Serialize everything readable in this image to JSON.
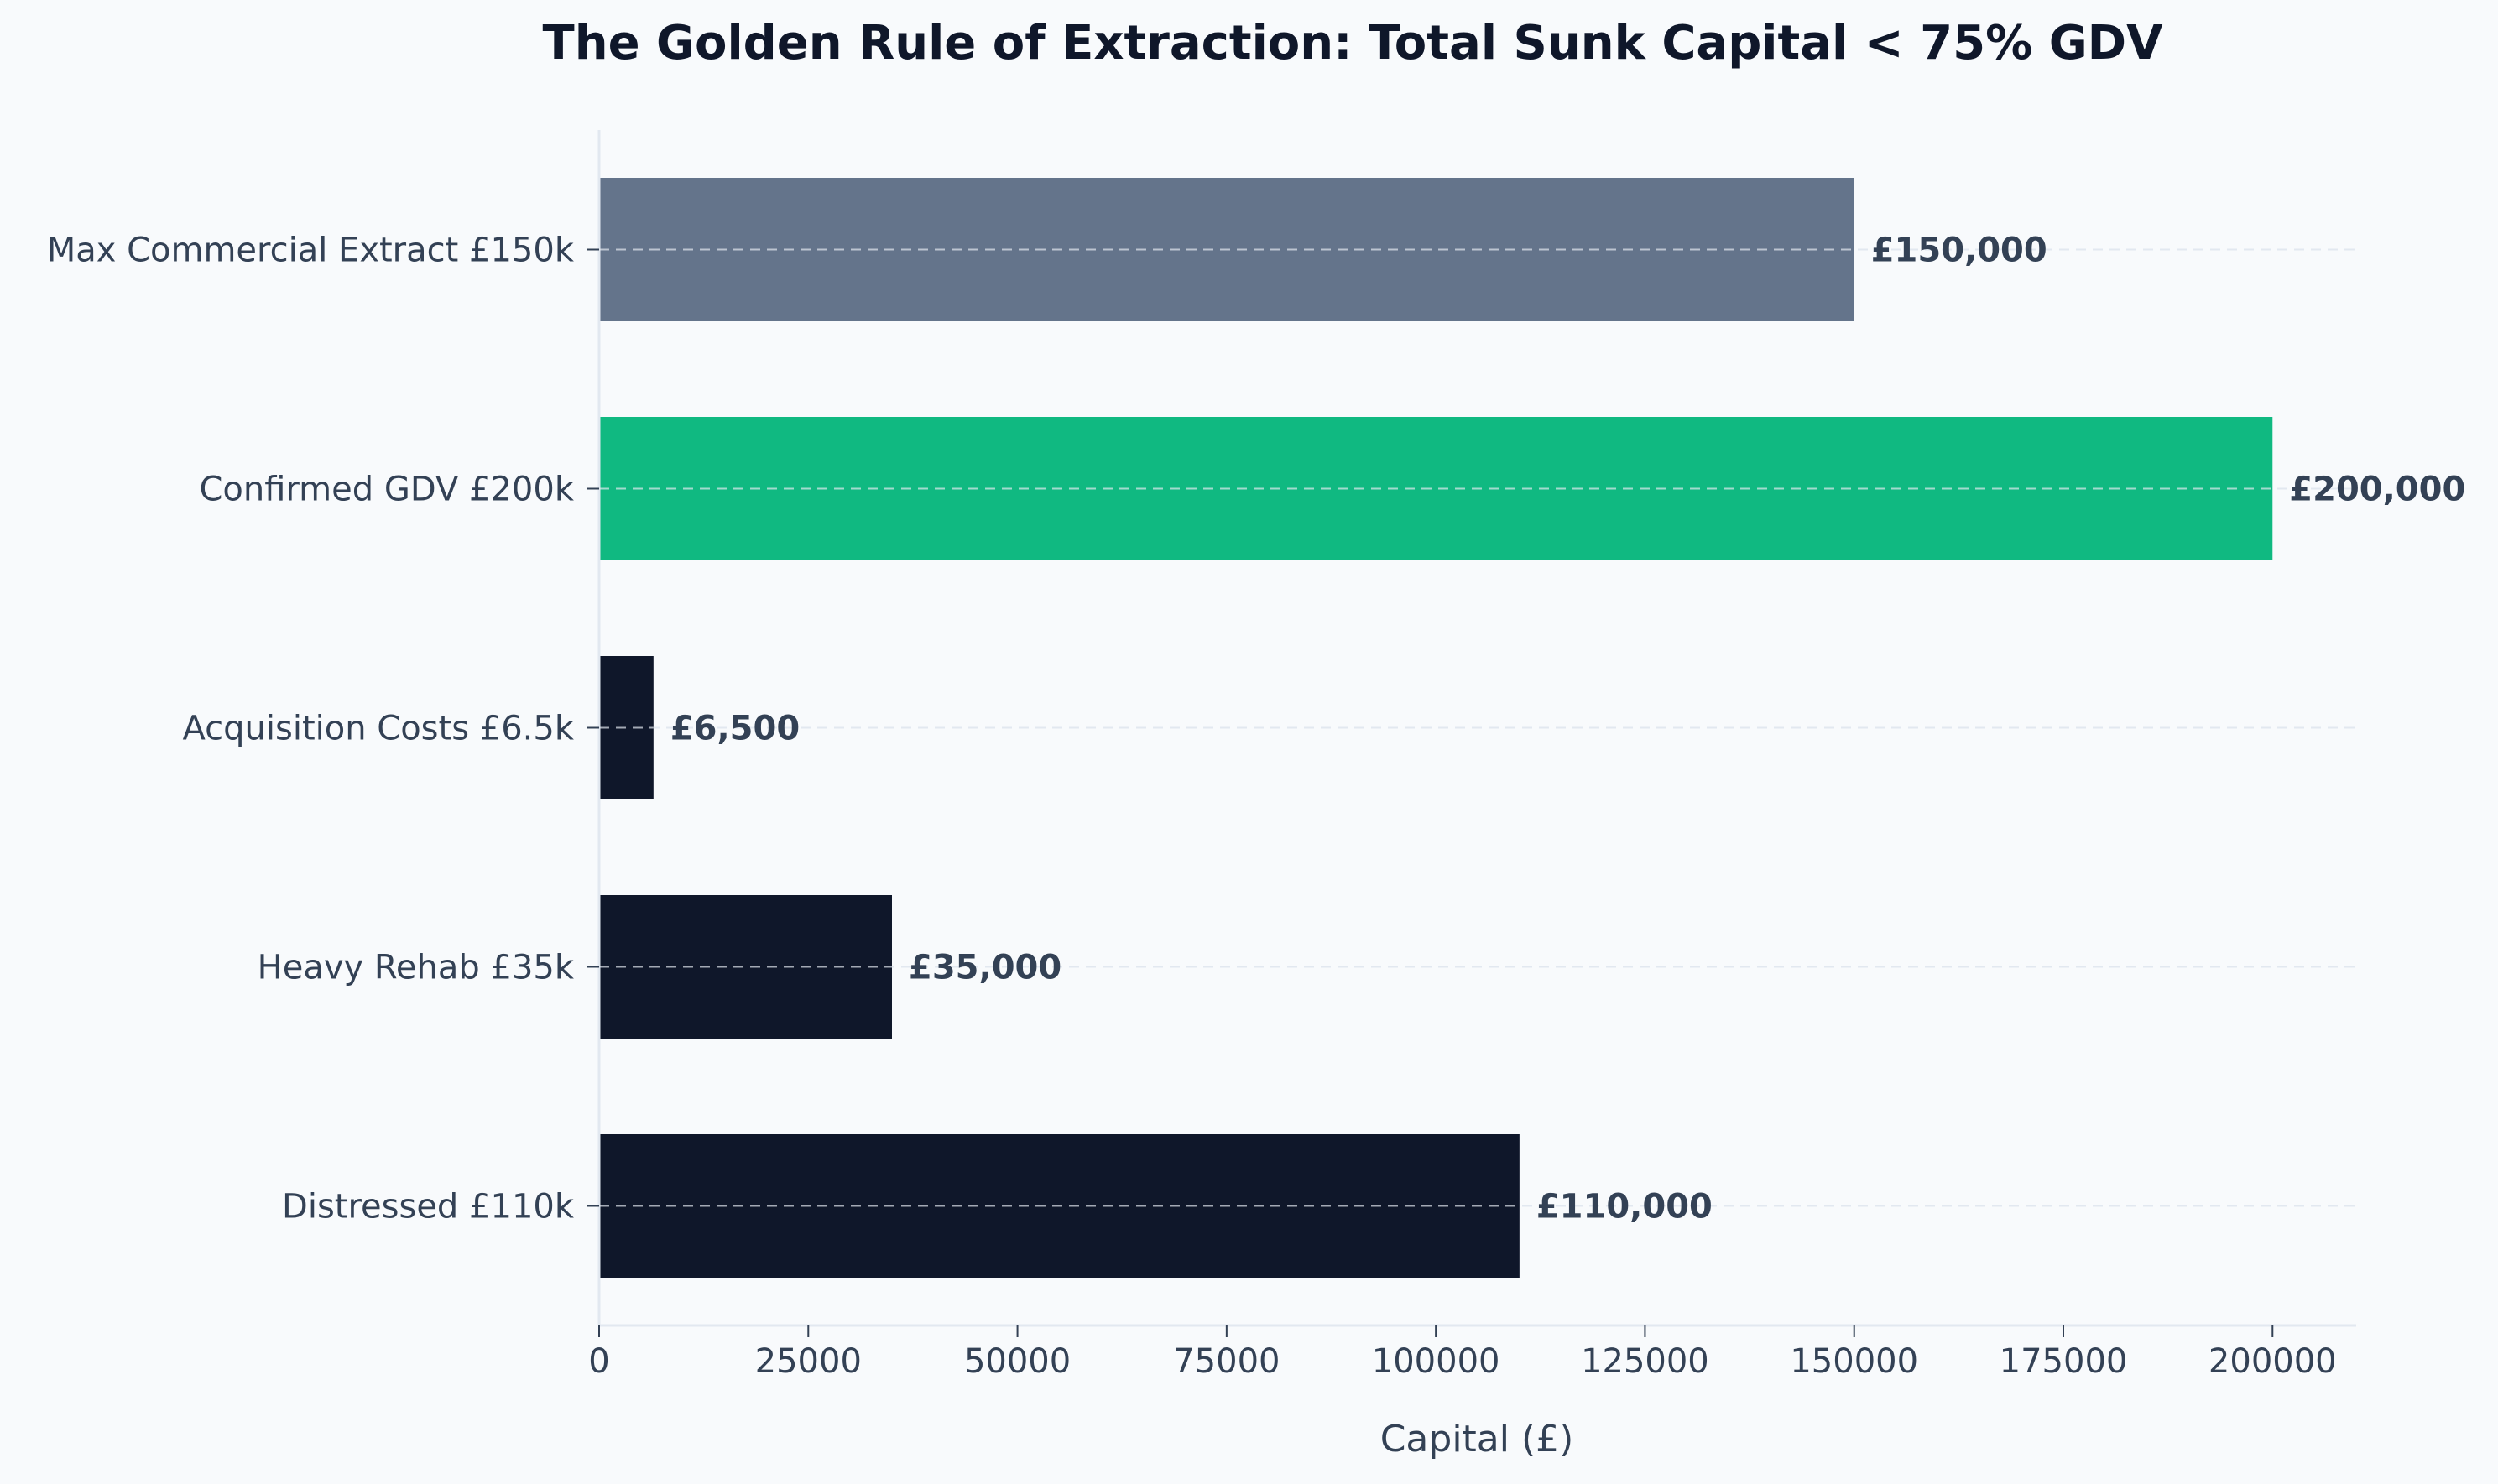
{
  "chart_data": {
    "type": "bar",
    "orientation": "horizontal",
    "title": "The Golden Rule of Extraction: Total Sunk Capital < 75% GDV",
    "xlabel": "Capital (£)",
    "ylabel": "",
    "xlim": [
      0,
      210000
    ],
    "xticks": [
      0,
      25000,
      50000,
      75000,
      100000,
      125000,
      150000,
      175000,
      200000
    ],
    "xtick_labels": [
      "0",
      "25000",
      "50000",
      "75000",
      "100000",
      "125000",
      "150000",
      "175000",
      "200000"
    ],
    "grid": "horizontal dashed",
    "categories": [
      "Max Commercial Extract £150k",
      "Confirmed GDV £200k",
      "Acquisition Costs £6.5k",
      "Heavy Rehab £35k",
      "Distressed £110k"
    ],
    "values": [
      150000,
      200000,
      6500,
      35000,
      110000
    ],
    "value_labels": [
      "£150,000",
      "£200,000",
      "£6,500",
      "£35,000",
      "£110,000"
    ],
    "colors": [
      "#64748b",
      "#10b981",
      "#0f172a",
      "#0f172a",
      "#0f172a"
    ]
  }
}
